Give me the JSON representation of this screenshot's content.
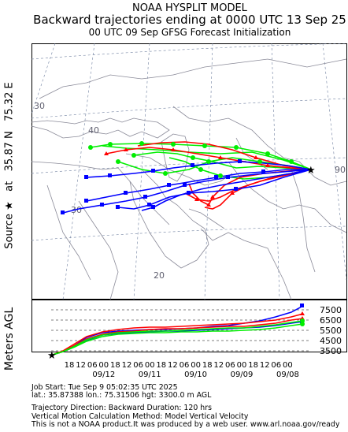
{
  "header": {
    "line1": "NOAA HYSPLIT MODEL",
    "line2": "Backward trajectories ending at 0000 UTC 13 Sep 25",
    "line3": "00 UTC 09 Sep    GFSG  Forecast Initialization"
  },
  "side_label": {
    "source_prefix": "Source",
    "star_glyph": "★",
    "at": "at",
    "lat": "35.87 N",
    "lon": "75.32 E"
  },
  "map": {
    "lat_labels": [
      "40",
      "30",
      "20"
    ],
    "lon_labels": [
      "30",
      "90"
    ],
    "source_point": {
      "lat": 35.87,
      "lon": 75.32
    }
  },
  "vertical_panel": {
    "y_axis_label": "Meters AGL",
    "start_height_label": "3300",
    "height_ticks": [
      "7500",
      "6500",
      "5500",
      "4500",
      "3500"
    ],
    "hour_ticks": [
      "18",
      "12",
      "06",
      "00",
      "18",
      "12",
      "06",
      "00",
      "18",
      "12",
      "06",
      "00",
      "18",
      "12",
      "06",
      "00",
      "18",
      "12",
      "06",
      "00"
    ],
    "date_ticks": [
      "09/12",
      "09/11",
      "09/10",
      "09/09",
      "09/08"
    ]
  },
  "footer": {
    "job_start": "Job Start: Tue Sep  9 05:02:35 UTC 2025",
    "location": "lat.: 35.87388   lon.: 75.31506   hgt: 3300.0 m AGL",
    "direction": "Trajectory Direction: Backward       Duration: 120 hrs",
    "vertical_motion": "Vertical Motion Calculation Method: Model Vertical Velocity",
    "disclaimer": "This is not a NOAA product.It was produced by a web user. www.arl.noaa.gov/ready"
  },
  "colors": {
    "trajectory_red": "#ff0000",
    "trajectory_blue": "#0000ff",
    "trajectory_green": "#00ee00",
    "map_lines": "#9999a8",
    "grid_lines": "#000000"
  }
}
